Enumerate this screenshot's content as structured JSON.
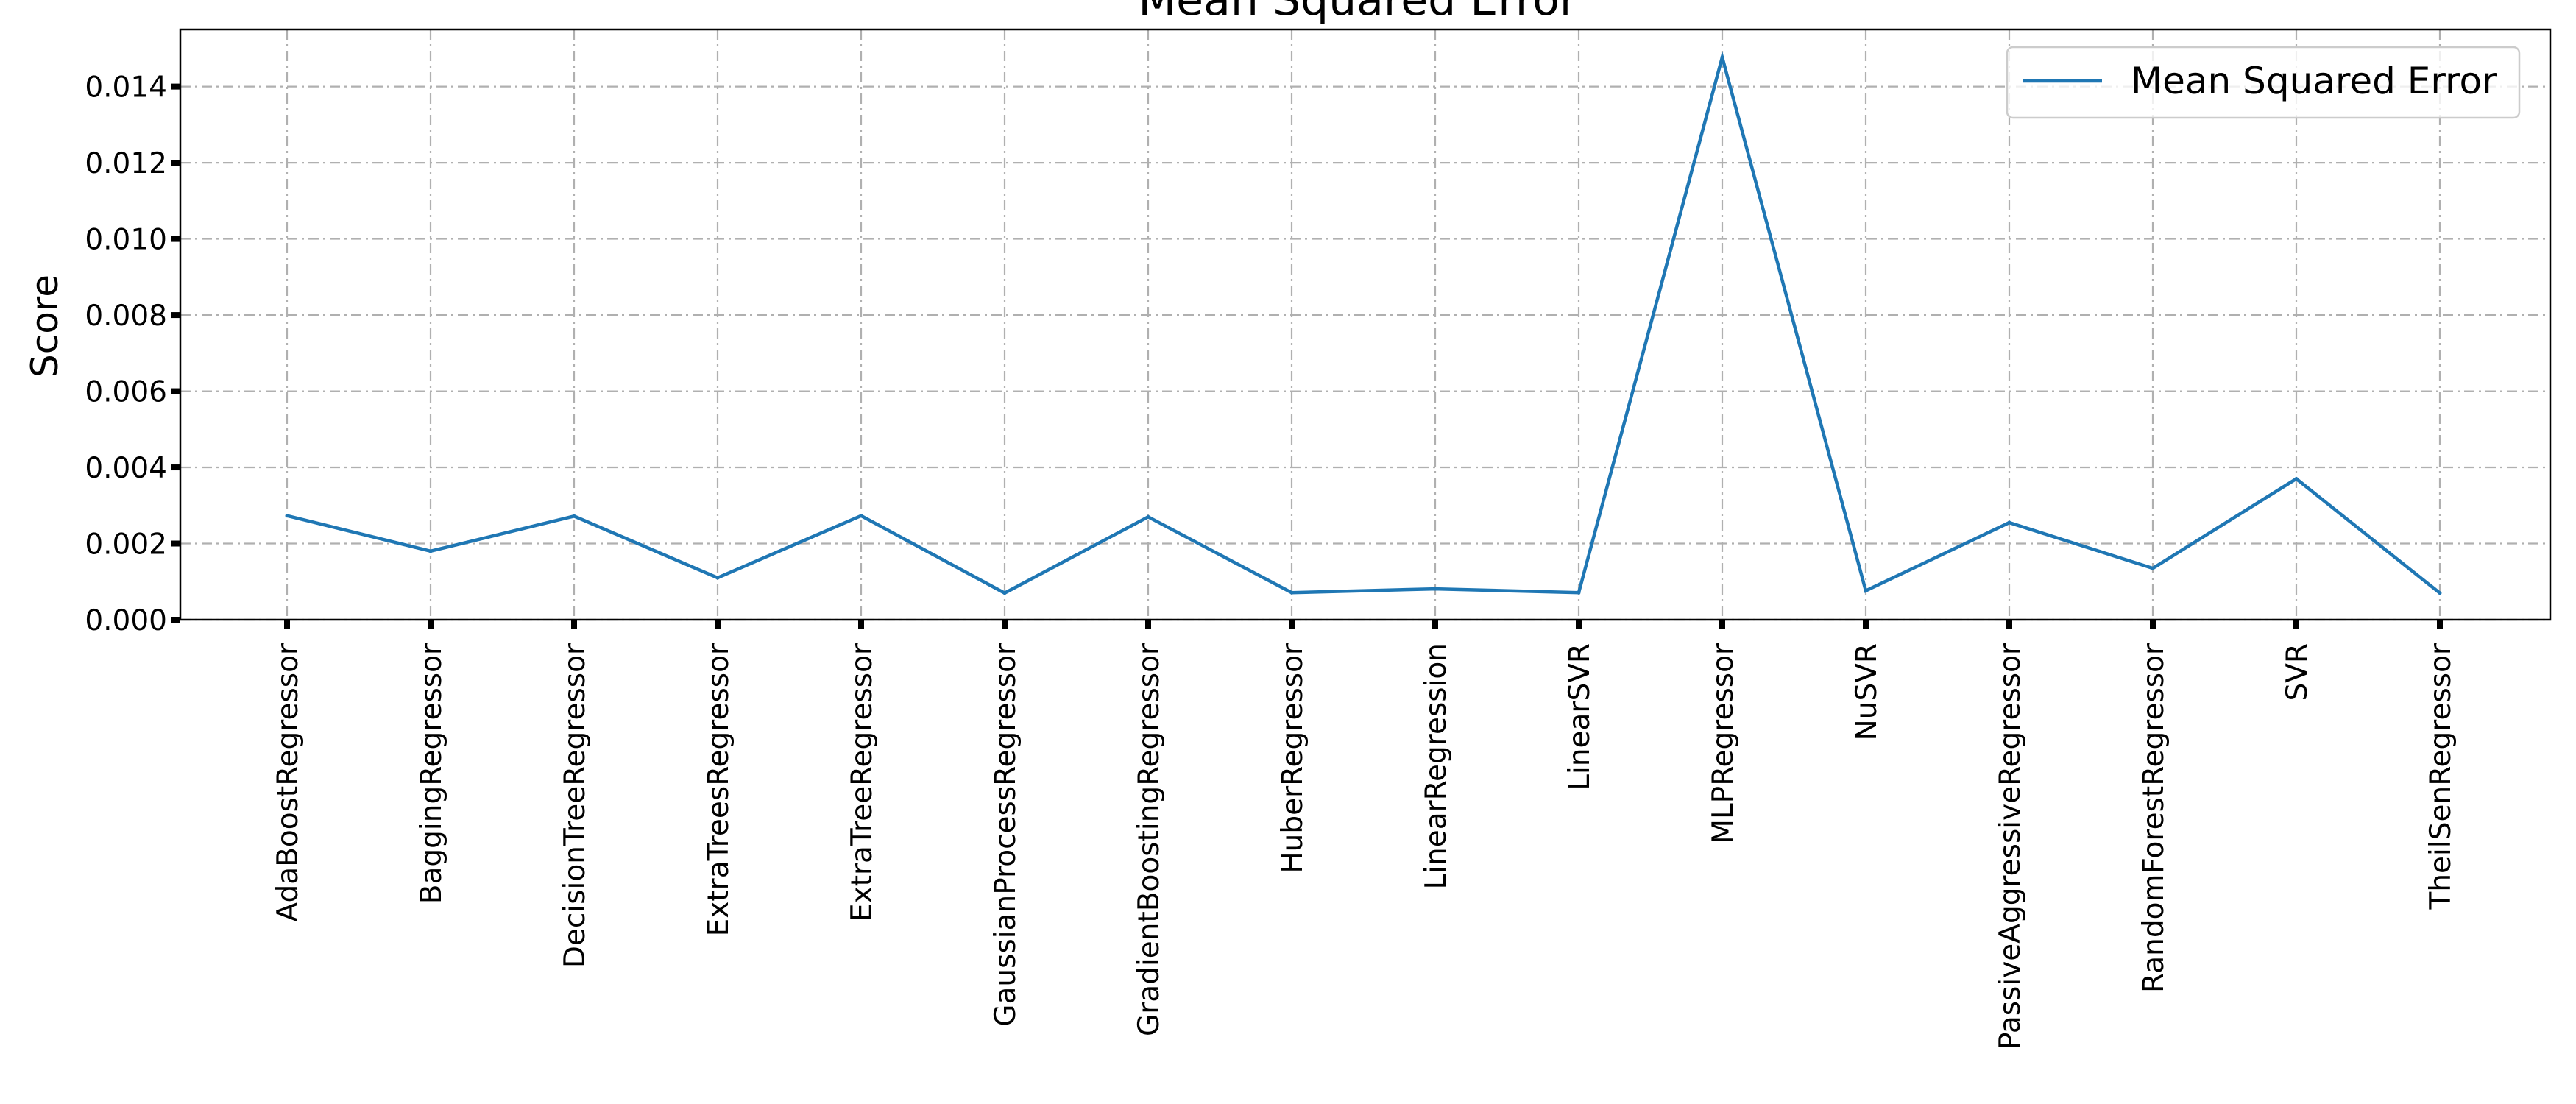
{
  "chart_data": {
    "type": "line",
    "title": "Mean Squared Error",
    "xlabel": "",
    "ylabel": "Score",
    "ylim": [
      0,
      0.0155
    ],
    "yticks": [
      "0.000",
      "0.002",
      "0.004",
      "0.006",
      "0.008",
      "0.010",
      "0.012",
      "0.014"
    ],
    "grid": true,
    "legend_position": "top-right",
    "colors": {
      "series": "#1f77b4",
      "grid": "#b0b0b0",
      "axis": "#000000"
    },
    "categories": [
      "AdaBoostRegressor",
      "BaggingRegressor",
      "DecisionTreeRegressor",
      "ExtraTreesRegressor",
      "ExtraTreeRegressor",
      "GaussianProcessRegressor",
      "GradientBoostingRegressor",
      "HuberRegressor",
      "LinearRegression",
      "LinearSVR",
      "MLPRegressor",
      "NuSVR",
      "PassiveAggressiveRegressor",
      "RandomForestRegressor",
      "SVR",
      "TheilSenRegressor"
    ],
    "series": [
      {
        "name": "Mean Squared Error",
        "values": [
          0.00273,
          0.0018,
          0.00272,
          0.0011,
          0.00273,
          0.0007,
          0.0027,
          0.00071,
          0.00081,
          0.00071,
          0.01477,
          0.00076,
          0.00255,
          0.00135,
          0.0037,
          0.0007
        ]
      }
    ]
  }
}
